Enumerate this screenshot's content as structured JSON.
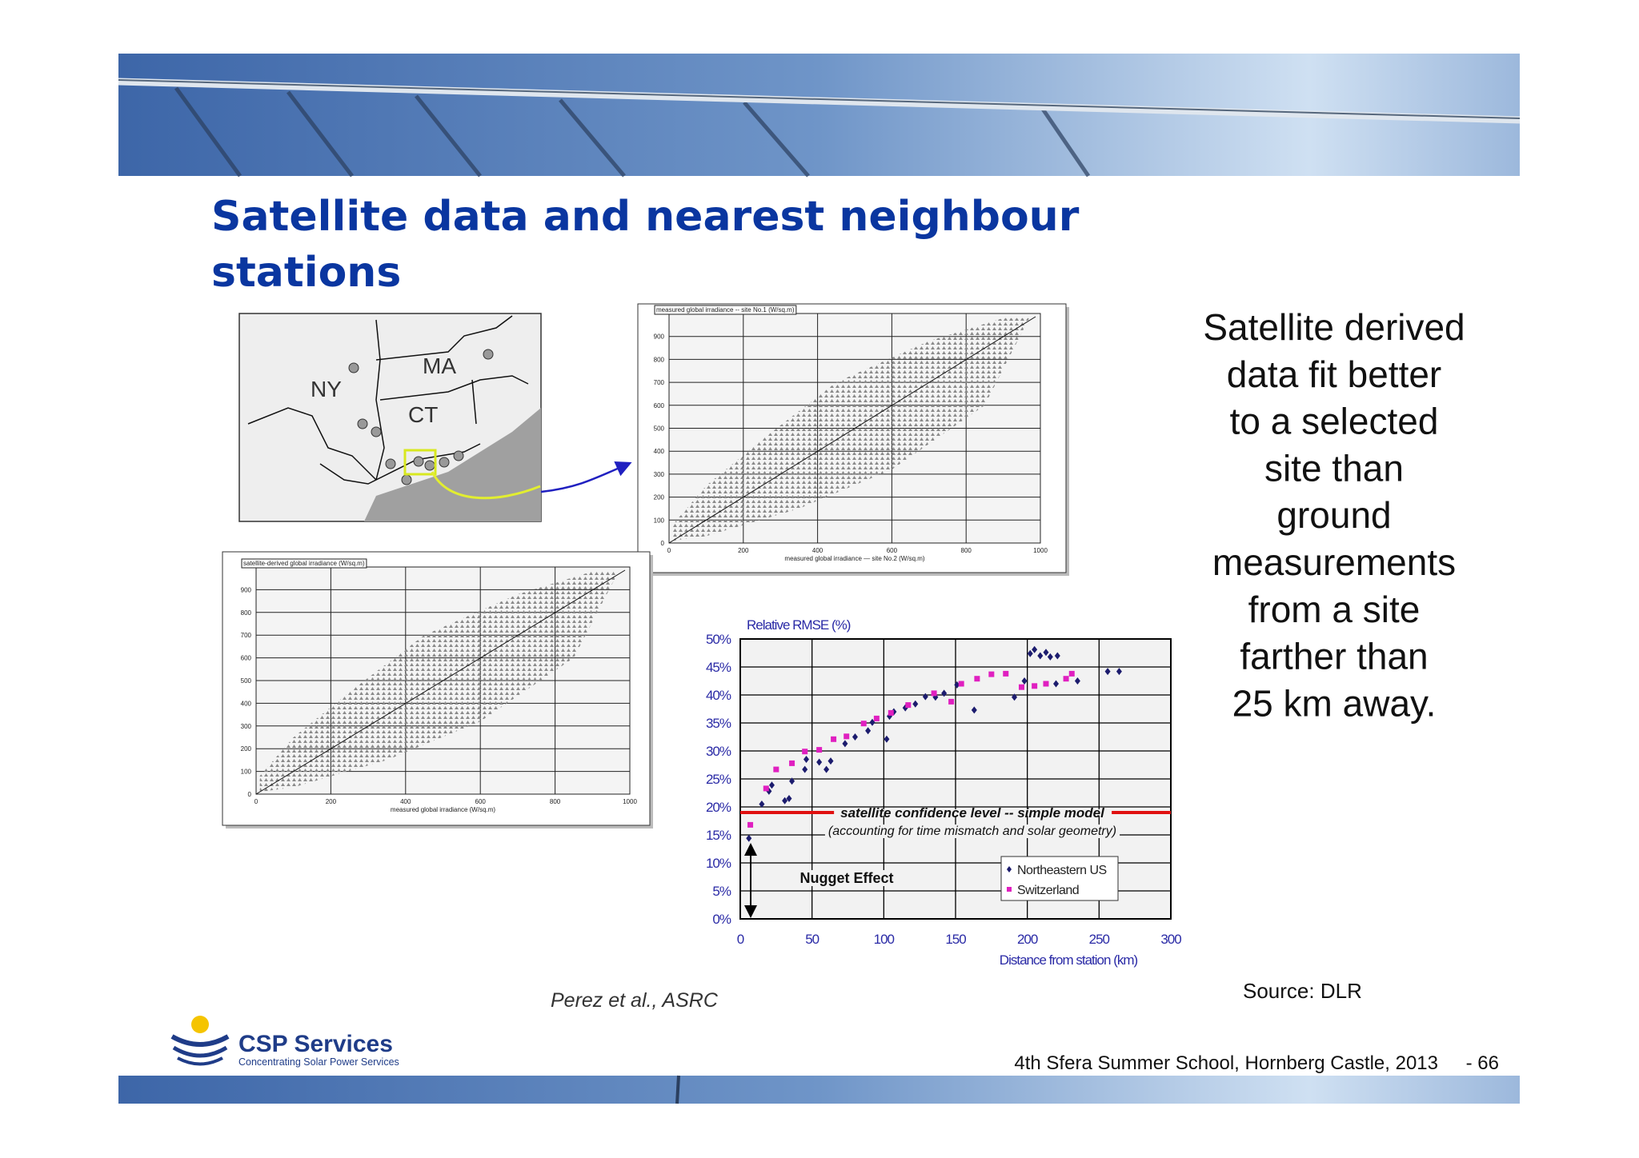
{
  "header": {
    "title_lines": [
      "Satellite data and nearest neighbour",
      "stations"
    ]
  },
  "map": {
    "labels": [
      "NY",
      "MA",
      "CT"
    ]
  },
  "plots": [
    {
      "y_label": "measured global irradiance -- site No.1 (W/sq.m)",
      "x_label": "measured global irradiance — site No.2 (W/sq.m)",
      "xlim": [
        0,
        1000
      ],
      "ylim": [
        0,
        1000
      ],
      "xticks": [
        0,
        200,
        400,
        600,
        800,
        1000
      ],
      "yticks": [
        0,
        100,
        200,
        300,
        400,
        500,
        600,
        700,
        800,
        900
      ]
    },
    {
      "y_label": "satellite-derived global irradiance (W/sq.m)",
      "x_label": "measured global irradiance (W/sq.m)",
      "xlim": [
        0,
        1000
      ],
      "ylim": [
        0,
        1000
      ],
      "xticks": [
        0,
        200,
        400,
        600,
        800,
        1000
      ],
      "yticks": [
        0,
        100,
        200,
        300,
        400,
        500,
        600,
        700,
        800,
        900
      ]
    }
  ],
  "chart_data": {
    "type": "scatter",
    "title": "Relative RMSE (%)",
    "x_label": "Distance from station (km)",
    "xlim": [
      0,
      300
    ],
    "ylim": [
      0,
      50
    ],
    "xticks": [
      0,
      50,
      100,
      150,
      200,
      250,
      300
    ],
    "yticks": [
      {
        "value": 0,
        "label": "0%"
      },
      {
        "value": 5,
        "label": "5%"
      },
      {
        "value": 10,
        "label": "10%"
      },
      {
        "value": 15,
        "label": "15%"
      },
      {
        "value": 20,
        "label": "20%"
      },
      {
        "value": 25,
        "label": "25%"
      },
      {
        "value": 30,
        "label": "30%"
      },
      {
        "value": 35,
        "label": "35%"
      },
      {
        "value": 40,
        "label": "40%"
      },
      {
        "value": 45,
        "label": "45%"
      },
      {
        "value": 50,
        "label": "50%"
      }
    ],
    "grid": true,
    "reference_line": {
      "value": 19,
      "label": "satellite confidence level -- simple model",
      "note": "(accounting for time mismatch and solar geometry)",
      "color": "#e01010"
    },
    "annotation": "Nugget Effect",
    "legend": "lower right",
    "series": [
      {
        "name": "Northeastern US",
        "color": "#1c1c6e",
        "x": [
          6,
          15,
          20,
          22,
          31,
          34,
          36,
          45,
          46,
          55,
          60,
          63,
          73,
          80,
          89,
          92,
          102,
          104,
          107,
          115,
          122,
          129,
          136,
          142,
          151,
          163,
          191,
          198,
          202,
          205,
          209,
          213,
          216,
          221,
          220,
          235,
          256,
          264
        ],
        "values": [
          14.4,
          20.5,
          22.8,
          23.9,
          21.1,
          21.5,
          24.6,
          26.7,
          28.5,
          28,
          26.7,
          28.2,
          31.3,
          32.5,
          33.6,
          35.1,
          32.1,
          36.2,
          37,
          37.7,
          38.4,
          39.7,
          39.6,
          40.3,
          41.8,
          37.3,
          39.6,
          42.5,
          47.4,
          48.1,
          47,
          47.6,
          46.8,
          47,
          42,
          42.5,
          44.2,
          44.2
        ]
      },
      {
        "name": "Switzerland",
        "color": "#e020c0",
        "x": [
          7,
          18,
          25,
          36,
          45,
          55,
          65,
          74,
          86,
          95,
          105,
          117,
          135,
          147,
          154,
          165,
          175,
          185,
          196,
          205,
          213,
          227,
          231
        ],
        "values": [
          16.8,
          23.3,
          26.7,
          27.8,
          29.9,
          30.2,
          32.1,
          32.6,
          34.9,
          35.8,
          36.8,
          38.2,
          40.3,
          38.8,
          42,
          42.9,
          43.7,
          43.8,
          41.4,
          41.6,
          42,
          42.9,
          43.8
        ]
      }
    ]
  },
  "side_text": [
    "Satellite derived",
    "data fit better",
    "to a selected",
    "site than",
    "ground",
    "measurements",
    "from a site",
    "farther than",
    "25 km away."
  ],
  "citation": "Perez et al., ASRC",
  "source": "Source: DLR",
  "logo": {
    "name": "CSP Services",
    "tagline": "Concentrating Solar Power Services"
  },
  "footer": {
    "event": "4th Sfera Summer School, Hornberg Castle, 2013",
    "page": "- 66"
  }
}
